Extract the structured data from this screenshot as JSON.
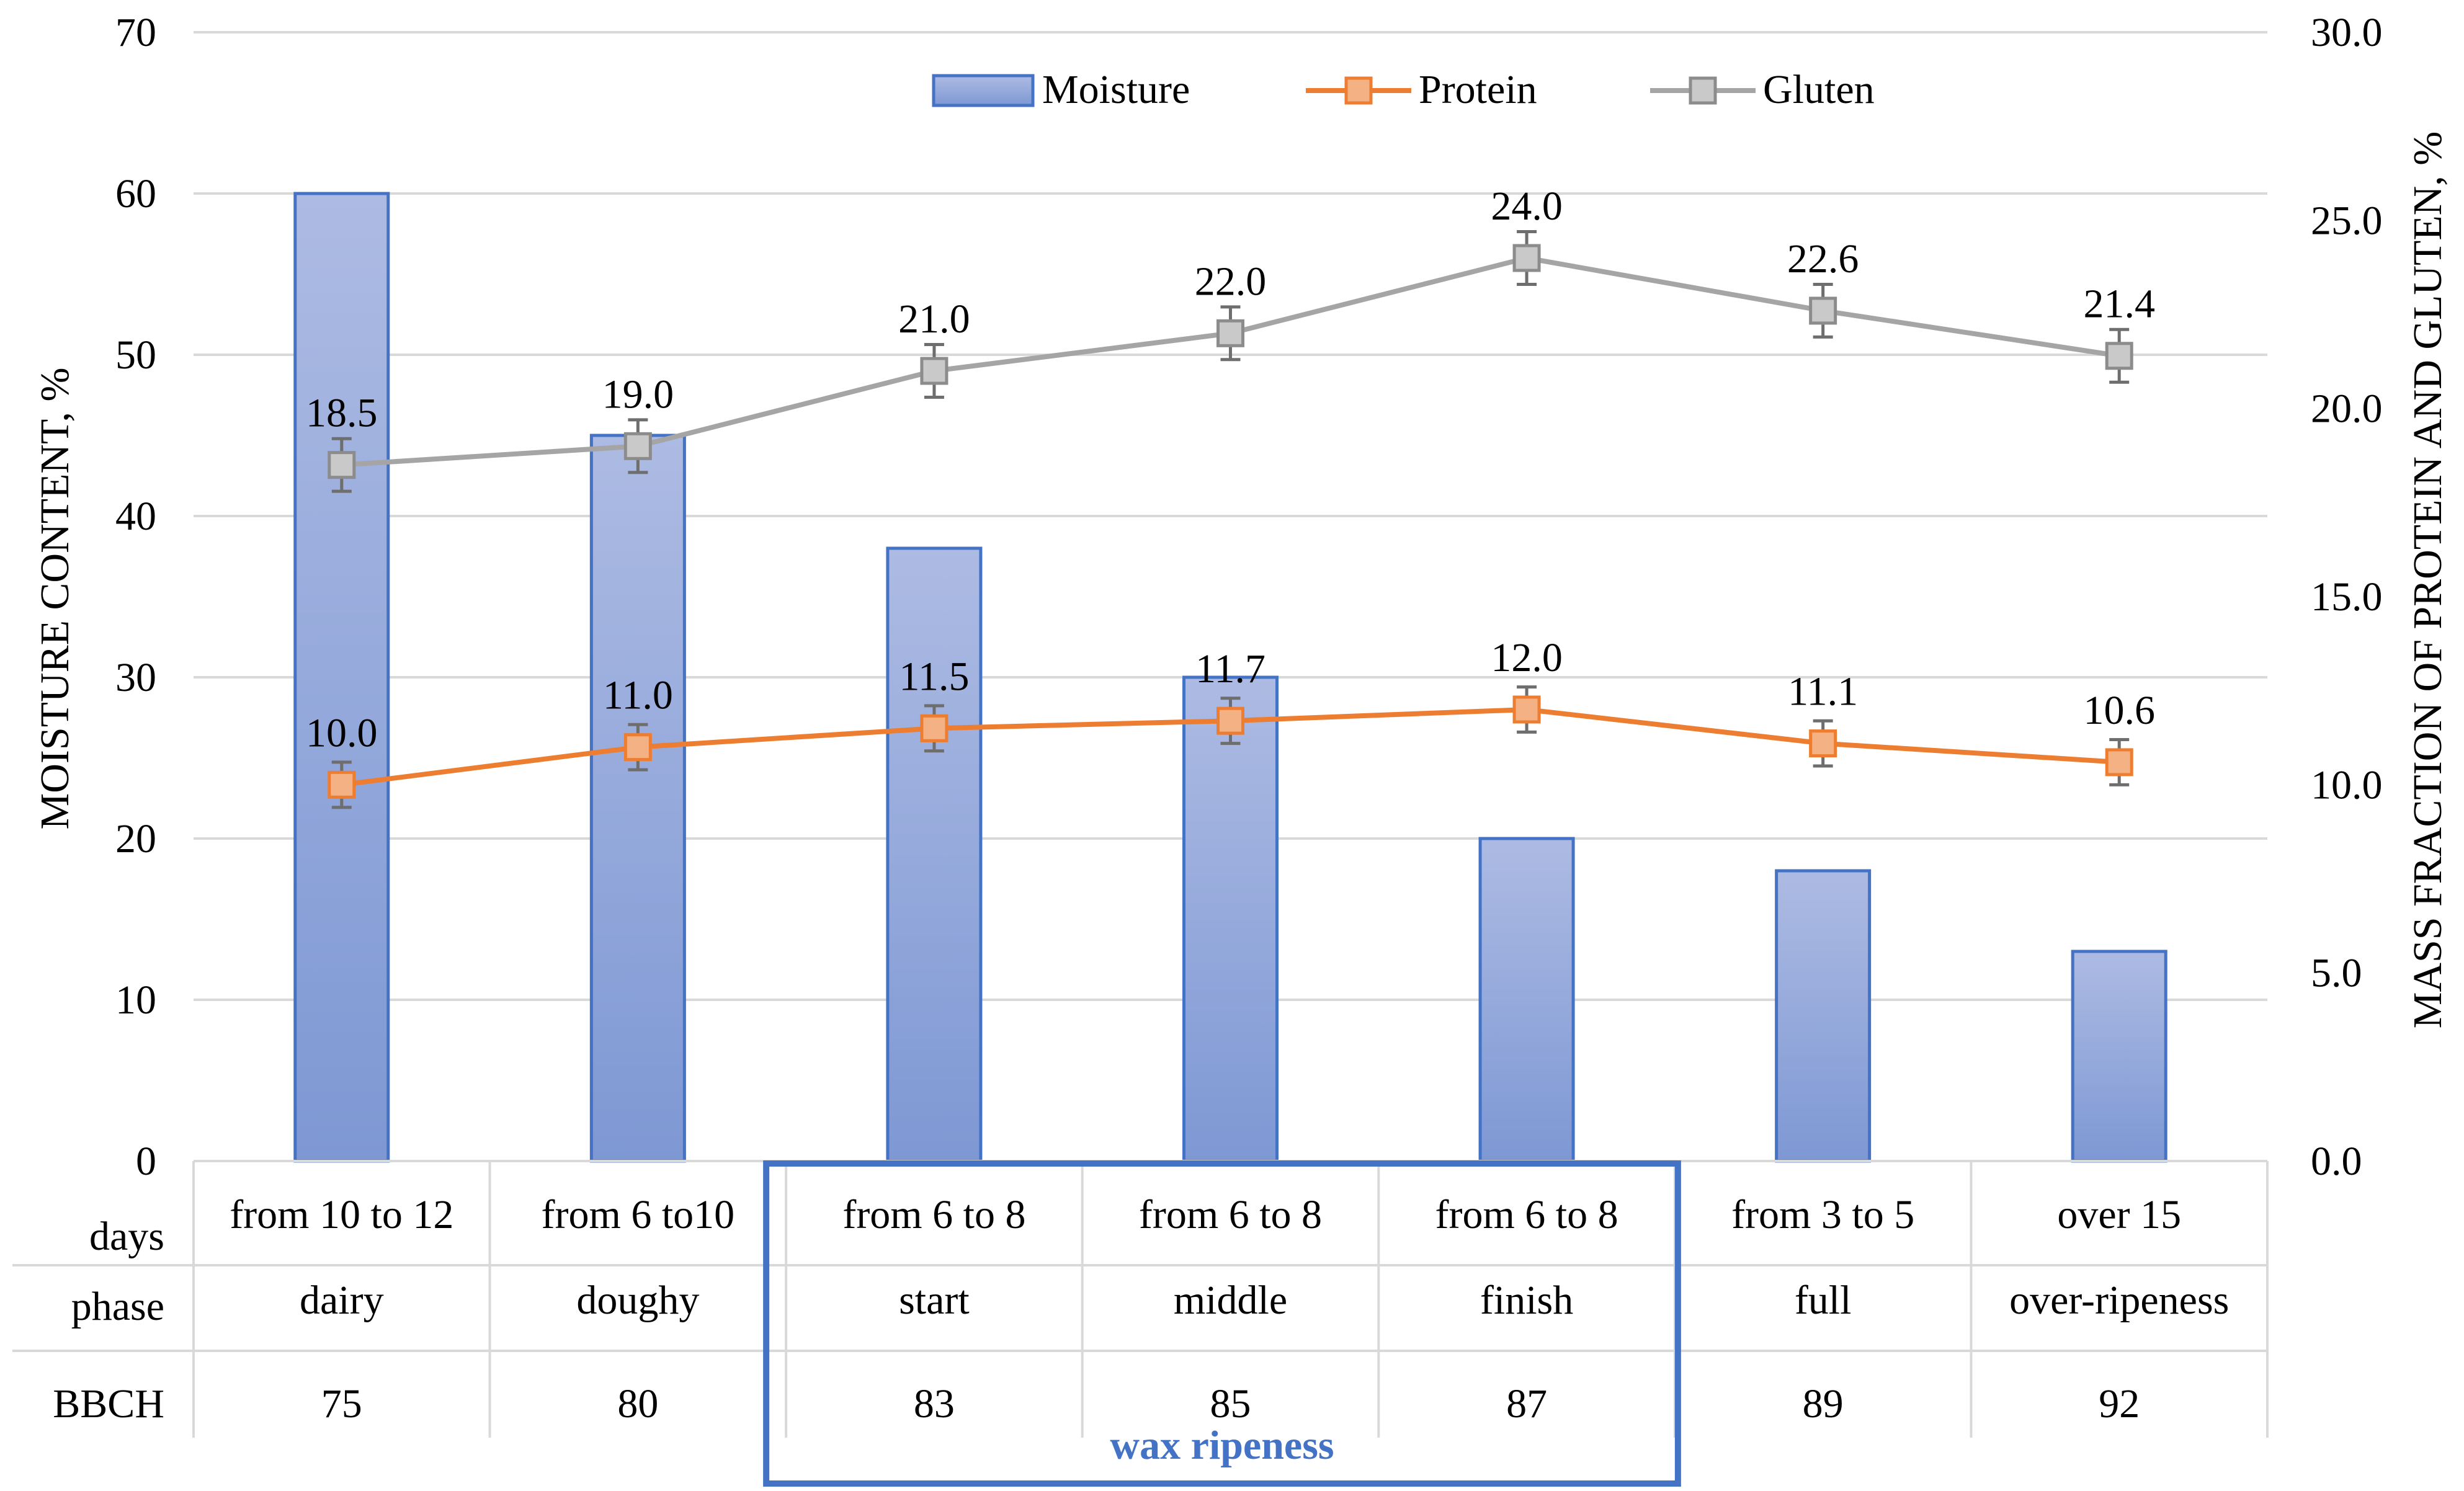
{
  "chart_data": {
    "type": "bar",
    "categories": [
      "75",
      "80",
      "83",
      "85",
      "87",
      "89",
      "92"
    ],
    "left_axis": {
      "label": "MOISTURE CONTENT, %",
      "ylim": [
        0,
        70
      ],
      "ticks": [
        "0",
        "10",
        "20",
        "30",
        "40",
        "50",
        "60",
        "70"
      ]
    },
    "right_axis": {
      "label": "MASS FRACTION OF PROTEIN AND GLUTEN, %",
      "ylim": [
        0,
        30
      ],
      "ticks": [
        "0.0",
        "5.0",
        "10.0",
        "15.0",
        "20.0",
        "25.0",
        "30.0"
      ]
    },
    "series": [
      {
        "name": "Moisture",
        "type": "bar",
        "axis": "left",
        "values": [
          60,
          45,
          38,
          30,
          20,
          18,
          13
        ]
      },
      {
        "name": "Protein",
        "type": "line",
        "axis": "right",
        "color": "#ED7D31",
        "values": [
          10.0,
          11.0,
          11.5,
          11.7,
          12.0,
          11.1,
          10.6
        ],
        "labels": [
          "10.0",
          "11.0",
          "11.5",
          "11.7",
          "12.0",
          "11.1",
          "10.6"
        ],
        "error": 0.6
      },
      {
        "name": "Gluten",
        "type": "line",
        "axis": "right",
        "color": "#A5A5A5",
        "values": [
          18.5,
          19.0,
          21.0,
          22.0,
          24.0,
          22.6,
          21.4
        ],
        "labels": [
          "18.5",
          "19.0",
          "21.0",
          "22.0",
          "24.0",
          "22.6",
          "21.4"
        ],
        "error": 0.7
      }
    ],
    "legend": {
      "position": "top-center"
    },
    "grid": true,
    "table": {
      "rows": [
        {
          "header": "days",
          "cells": [
            "from 10 to 12",
            "from 6 to10",
            "from 6 to 8",
            "from 6 to 8",
            "from 6 to 8",
            "from 3 to 5",
            "over 15"
          ]
        },
        {
          "header": "phase",
          "cells": [
            "dairy",
            "doughy",
            "start",
            "middle",
            "finish",
            "full",
            "over-ripeness"
          ]
        },
        {
          "header": "BBCH",
          "cells": [
            "75",
            "80",
            "83",
            "85",
            "87",
            "89",
            "92"
          ]
        }
      ],
      "group_label": "wax ripeness",
      "group_start": 2,
      "group_end": 4
    },
    "colors": {
      "bar_top": "#ADBBE3",
      "bar_bottom": "#7E98D4",
      "bar_stroke": "#4472C4",
      "grid": "#D9D9D9",
      "highlight": "#4472C4",
      "text": "#000000"
    }
  }
}
